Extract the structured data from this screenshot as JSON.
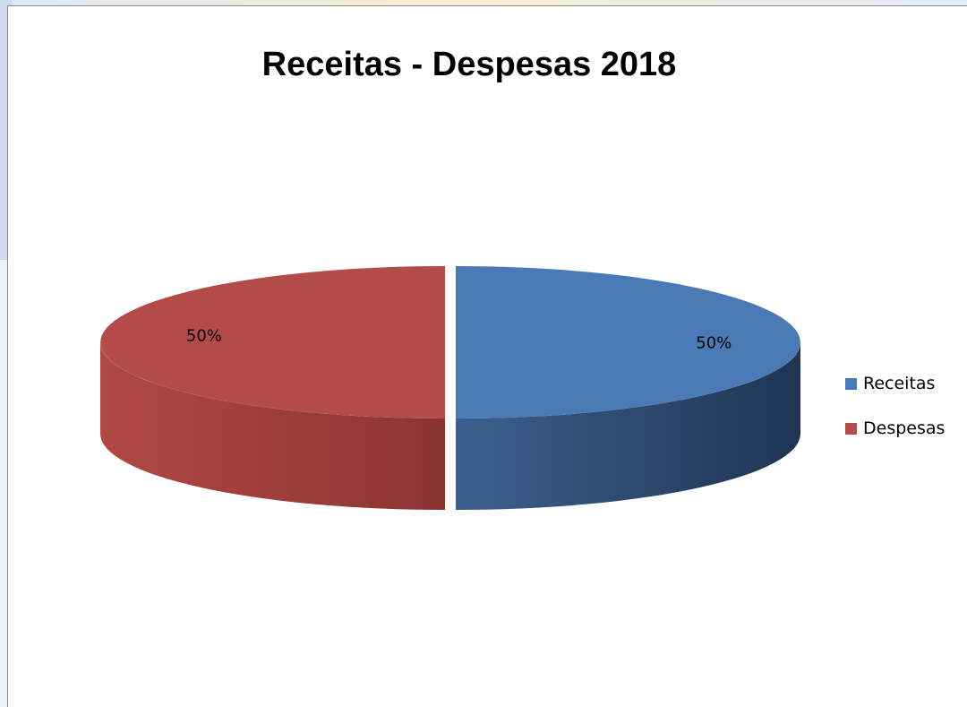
{
  "chart_data": {
    "type": "pie",
    "title": "Receitas - Despesas 2018",
    "style": "3d-exploded",
    "slices": [
      {
        "name": "Receitas",
        "value": 50,
        "label": "50%",
        "color": "#4a7ab5",
        "side_color": "#2c4a72"
      },
      {
        "name": "Despesas",
        "value": 50,
        "label": "50%",
        "color": "#b34c48",
        "side_color": "#8a3532"
      }
    ],
    "legend_position": "right"
  }
}
